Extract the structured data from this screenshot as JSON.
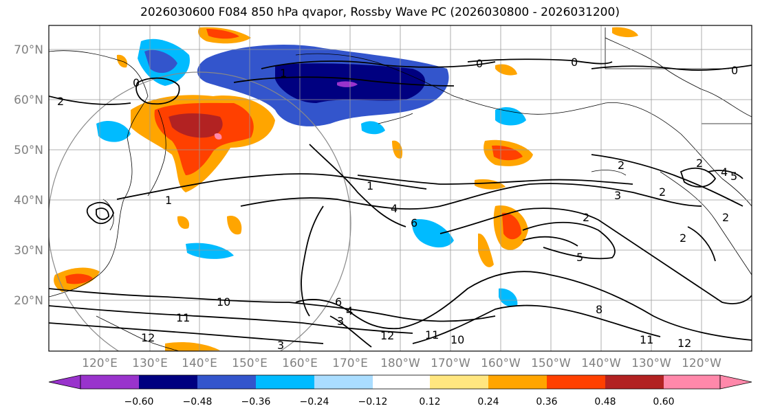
{
  "title": "2026030600 F084 850 hPa qvapor, Rossby Wave PC (2026030800 - 2026031200)",
  "lat_labels": [
    "70°N",
    "60°N",
    "50°N",
    "40°N",
    "30°N",
    "20°N"
  ],
  "lon_labels": [
    "120°E",
    "130°E",
    "140°E",
    "150°E",
    "160°E",
    "170°E",
    "180°W",
    "170°W",
    "160°W",
    "150°W",
    "140°W",
    "130°W",
    "120°W"
  ],
  "colorbar": {
    "colors": [
      "#9933cc",
      "#000080",
      "#3355cc",
      "#00bbff",
      "#aaddff",
      "#ffffff",
      "#ffe680",
      "#ffa500",
      "#ff4000",
      "#b22222",
      "#ff88aa"
    ],
    "ticks": [
      "−0.60",
      "−0.48",
      "−0.36",
      "−0.24",
      "−0.12",
      "0.12",
      "0.24",
      "0.36",
      "0.48",
      "0.60"
    ]
  },
  "contour_labels": [
    "2",
    "0",
    "1",
    "0",
    "1",
    "1",
    "4",
    "6",
    "3",
    "2",
    "2",
    "10",
    "11",
    "12",
    "6",
    "4",
    "3",
    "5",
    "8",
    "11",
    "12",
    "10",
    "11",
    "12",
    "0",
    "2",
    "3",
    "0",
    "4",
    "5",
    "2",
    "2",
    "2"
  ]
}
